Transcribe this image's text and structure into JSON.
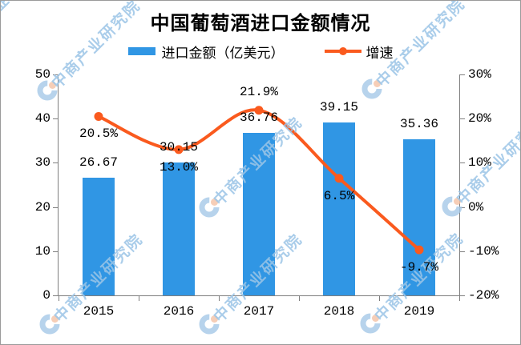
{
  "title": "中国葡萄酒进口金额情况",
  "legend": {
    "bar_label": "进口金额（亿美元）",
    "line_label": "增速"
  },
  "watermark": {
    "text": "中商产业研究院"
  },
  "colors": {
    "bar": "#3096E4",
    "line": "#FA5A1E",
    "watermark_text": "#9CC5E7",
    "watermark_logo_blue": "#A6C9E8",
    "watermark_logo_peach": "#F4C2A6",
    "axis": "#7F7F7F",
    "label": "#000000"
  },
  "chart_data": {
    "type": "bar+line combo",
    "title": "中国葡萄酒进口金额情况",
    "categories": [
      "2015",
      "2016",
      "2017",
      "2018",
      "2019"
    ],
    "series": [
      {
        "name": "进口金额（亿美元）",
        "type": "bar",
        "axis": "left",
        "values": [
          26.67,
          30.15,
          36.76,
          39.15,
          35.36
        ],
        "labels": [
          "26.67",
          "30.15",
          "36.76",
          "39.15",
          "35.36"
        ]
      },
      {
        "name": "增速",
        "type": "line",
        "axis": "right",
        "values": [
          20.5,
          13.0,
          21.9,
          6.5,
          -9.7
        ],
        "labels": [
          "20.5%",
          "13.0%",
          "21.9%",
          "6.5%",
          "-9.7%"
        ],
        "label_pos": [
          "below",
          "below",
          "above",
          "below",
          "below"
        ]
      }
    ],
    "left_axis": {
      "min": 0,
      "max": 50,
      "step": 10,
      "ticks": [
        "0",
        "10",
        "20",
        "30",
        "40",
        "50"
      ]
    },
    "right_axis": {
      "min": -20,
      "max": 30,
      "step": 10,
      "ticks": [
        "-20%",
        "-10%",
        "0%",
        "10%",
        "20%",
        "30%"
      ]
    },
    "legend_position": "top",
    "grid": false
  }
}
